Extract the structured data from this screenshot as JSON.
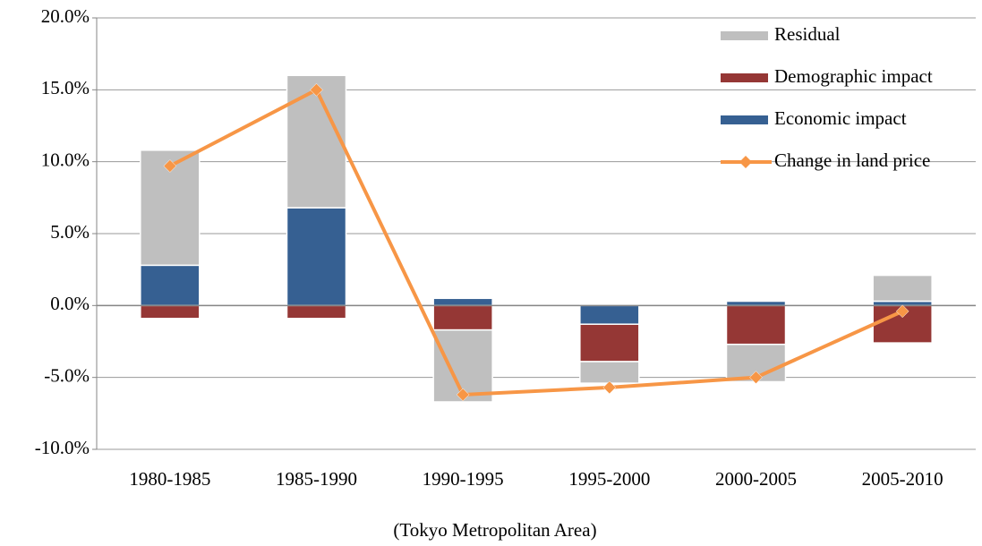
{
  "chart_data": {
    "type": "stacked_bar_line",
    "x_label": "(Tokyo Metropolitan Area)",
    "categories": [
      "1980-1985",
      "1985-1990",
      "1990-1995",
      "1995-2000",
      "2000-2005",
      "2005-2010"
    ],
    "series": [
      {
        "name": "Economic impact",
        "type": "bar",
        "color": "#366092",
        "values": [
          2.8,
          6.8,
          0.5,
          -1.3,
          0.3,
          0.3
        ]
      },
      {
        "name": "Demographic impact",
        "type": "bar",
        "color": "#953735",
        "values": [
          -0.9,
          -0.9,
          -1.7,
          -2.6,
          -2.7,
          -2.6
        ]
      },
      {
        "name": "Residual",
        "type": "bar",
        "color": "#bfbfbf",
        "values": [
          8.0,
          9.2,
          -5.0,
          -1.5,
          -2.6,
          1.8
        ]
      },
      {
        "name": "Change in land price",
        "type": "line",
        "color": "#f79646",
        "values": [
          9.7,
          15.0,
          -6.2,
          -5.7,
          -5.0,
          -0.4
        ]
      }
    ],
    "ylim": [
      -10,
      20
    ],
    "yticks": [
      {
        "value": -10,
        "label": "-10.0%"
      },
      {
        "value": -5,
        "label": "-5.0%"
      },
      {
        "value": 0,
        "label": "0.0%"
      },
      {
        "value": 5,
        "label": "5.0%"
      },
      {
        "value": 10,
        "label": "10.0%"
      },
      {
        "value": 15,
        "label": "15.0%"
      },
      {
        "value": 20,
        "label": "20.0%"
      }
    ],
    "negative_tick_color": "#ff0000",
    "grid": true,
    "legend": "top-right"
  }
}
